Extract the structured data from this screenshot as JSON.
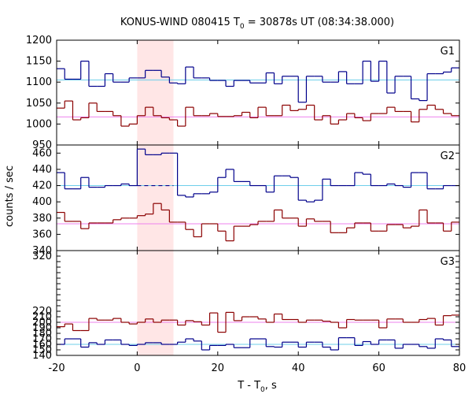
{
  "chart_data": {
    "type": "line",
    "title": "KONUS-WIND 080415 T",
    "title_sub": "0",
    "title_rest": " = 30878s UT (08:34:38.000)",
    "xlabel": "T - T",
    "xlabel_sub": "0",
    "xlabel_rest": ", s",
    "ylabel": "counts / sec",
    "xlim": [
      -20,
      80
    ],
    "xticks": [
      -20,
      0,
      20,
      40,
      60,
      80
    ],
    "bin_edges": [
      -20,
      -18,
      -16,
      -14,
      -12,
      -10,
      -8,
      -6,
      -4,
      -2,
      0,
      2,
      4,
      6,
      8,
      10,
      12,
      14,
      16,
      18,
      20,
      22,
      24,
      26,
      28,
      30,
      32,
      34,
      36,
      38,
      40,
      42,
      44,
      46,
      48,
      50,
      52,
      54,
      56,
      58,
      60,
      62,
      64,
      66,
      68,
      70,
      72,
      74,
      76,
      78,
      80
    ],
    "highlight_interval": [
      0,
      9
    ],
    "panels": [
      {
        "name": "G1",
        "ylim": [
          950,
          1200
        ],
        "yticks": [
          950,
          1000,
          1050,
          1100,
          1150,
          1200
        ],
        "series": [
          {
            "name": "upper",
            "color": "#00008b",
            "values": [
              1132,
              1107,
              1107,
              1150,
              1090,
              1090,
              1120,
              1100,
              1100,
              1110,
              1110,
              1128,
              1128,
              1112,
              1098,
              1096,
              1136,
              1110,
              1110,
              1104,
              1104,
              1090,
              1104,
              1104,
              1098,
              1098,
              1122,
              1096,
              1114,
              1114,
              1052,
              1114,
              1114,
              1100,
              1100,
              1125,
              1096,
              1096,
              1150,
              1102,
              1150,
              1074,
              1114,
              1114,
              1060,
              1056,
              1120,
              1120,
              1124,
              1134
            ],
            "baseline": 1105,
            "baseline_color": "#6fcfea"
          },
          {
            "name": "lower",
            "color": "#8b0000",
            "values": [
              1038,
              1055,
              1010,
              1015,
              1050,
              1030,
              1030,
              1020,
              995,
              1000,
              1020,
              1040,
              1020,
              1015,
              1010,
              995,
              1040,
              1020,
              1020,
              1025,
              1018,
              1018,
              1020,
              1028,
              1015,
              1040,
              1020,
              1020,
              1045,
              1032,
              1035,
              1045,
              1010,
              1020,
              1000,
              1010,
              1025,
              1015,
              1008,
              1025,
              1025,
              1040,
              1030,
              1030,
              1005,
              1035,
              1045,
              1035,
              1025,
              1020
            ],
            "baseline": 1017,
            "baseline_color": "#ee82ee"
          }
        ]
      },
      {
        "name": "G2",
        "ylim": [
          340,
          470
        ],
        "yticks": [
          340,
          360,
          380,
          400,
          420,
          440,
          460
        ],
        "series": [
          {
            "name": "upper",
            "color": "#00008b",
            "values": [
              436,
              416,
              416,
              430,
              418,
              418,
              420,
              420,
              422,
              420,
              465,
              458,
              458,
              460,
              460,
              408,
              406,
              410,
              410,
              412,
              430,
              440,
              425,
              425,
              420,
              420,
              412,
              432,
              432,
              430,
              402,
              400,
              402,
              428,
              420,
              420,
              420,
              436,
              434,
              420,
              420,
              422,
              420,
              418,
              436,
              436,
              416,
              416,
              420,
              420
            ],
            "baseline": 420,
            "baseline_color": "#6fcfea",
            "dashed_segment": {
              "x": [
                0,
                9
              ],
              "y": 420
            }
          },
          {
            "name": "lower",
            "color": "#8b0000",
            "values": [
              387,
              376,
              376,
              367,
              374,
              374,
              374,
              378,
              380,
              380,
              383,
              385,
              398,
              390,
              375,
              375,
              366,
              357,
              373,
              373,
              364,
              352,
              370,
              370,
              372,
              376,
              376,
              390,
              380,
              380,
              370,
              379,
              376,
              376,
              362,
              362,
              368,
              374,
              374,
              364,
              364,
              372,
              372,
              368,
              370,
              390,
              374,
              374,
              364,
              375
            ],
            "baseline": 373,
            "baseline_color": "#ee82ee"
          }
        ]
      },
      {
        "name": "G3",
        "ylim": [
          140,
          330
        ],
        "yticks": [
          140,
          150,
          160,
          170,
          180,
          190,
          200,
          210,
          220,
          230,
          240,
          250,
          260,
          270,
          280,
          290,
          300,
          310,
          320,
          330
        ],
        "tick_labels_visible": [
          140,
          150,
          160,
          170,
          180,
          190,
          200,
          210,
          220,
          320
        ],
        "series": [
          {
            "name": "upper",
            "color": "#8b0000",
            "values": [
              192,
              197,
              185,
              185,
              207,
              204,
              204,
              207,
              200,
              197,
              200,
              206,
              200,
              204,
              204,
              195,
              203,
              201,
              195,
              217,
              182,
              218,
              203,
              210,
              210,
              206,
              200,
              215,
              205,
              205,
              200,
              204,
              204,
              202,
              200,
              190,
              205,
              204,
              204,
              204,
              190,
              206,
              206,
              200,
              200,
              205,
              207,
              195,
              212,
              213
            ],
            "baseline": 200,
            "baseline_color": "#ee82ee"
          },
          {
            "name": "lower",
            "color": "#00008b",
            "values": [
              160,
              170,
              170,
              155,
              163,
              160,
              168,
              168,
              160,
              158,
              160,
              163,
              163,
              160,
              160,
              164,
              170,
              166,
              150,
              158,
              158,
              160,
              154,
              154,
              170,
              170,
              156,
              155,
              164,
              164,
              155,
              164,
              164,
              155,
              150,
              172,
              172,
              158,
              165,
              160,
              168,
              168,
              153,
              160,
              160,
              156,
              153,
              170,
              168,
              156
            ],
            "baseline": 160,
            "baseline_color": "#6fcfea"
          }
        ]
      }
    ]
  }
}
